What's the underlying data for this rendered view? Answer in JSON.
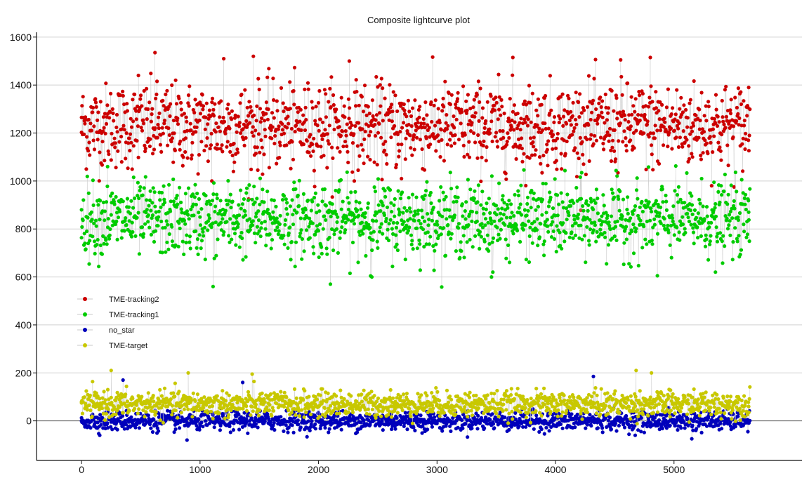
{
  "chart_data": {
    "type": "scatter",
    "title": "Composite lightcurve plot",
    "xlabel": "",
    "ylabel": "",
    "xlim": [
      -380,
      6080
    ],
    "ylim": [
      -165,
      1620
    ],
    "x_ticks": [
      0,
      1000,
      2000,
      3000,
      4000,
      5000
    ],
    "y_ticks": [
      0,
      200,
      400,
      600,
      800,
      1000,
      1200,
      1400,
      1600
    ],
    "x_tick_labels": [
      "0",
      "1000",
      "2000",
      "3000",
      "4000",
      "5000"
    ],
    "y_tick_labels": [
      "0",
      "200",
      "400",
      "600",
      "800",
      "1000",
      "1200",
      "1400",
      "1600"
    ],
    "grid": "horizontal",
    "legend_position": "center-left",
    "x_range": [
      0,
      5640
    ],
    "series": [
      {
        "name": "TME-tracking2",
        "color": "#cc0000",
        "connector_color": "#c8c8c8",
        "summary": {
          "center": 1230,
          "typical_min": 1060,
          "typical_max": 1410
        },
        "sample_points": [
          [
            0,
            1265
          ],
          [
            480,
            1440
          ],
          [
            620,
            1535
          ],
          [
            1200,
            1510
          ],
          [
            1450,
            1520
          ],
          [
            2260,
            1500
          ],
          [
            3640,
            1515
          ],
          [
            4550,
            1505
          ],
          [
            4800,
            1515
          ],
          [
            1100,
            1000
          ],
          [
            2700,
            1010
          ],
          [
            5630,
            1390
          ]
        ]
      },
      {
        "name": "TME-tracking1",
        "color": "#00cc00",
        "connector_color": "#c8c8c8",
        "summary": {
          "center": 840,
          "typical_min": 690,
          "typical_max": 990
        },
        "sample_points": [
          [
            0,
            880
          ],
          [
            220,
            1060
          ],
          [
            1110,
            560
          ],
          [
            2100,
            570
          ],
          [
            2450,
            600
          ],
          [
            3460,
            600
          ],
          [
            4860,
            605
          ],
          [
            5350,
            620
          ],
          [
            5630,
            870
          ]
        ]
      },
      {
        "name": "no_star",
        "color": "#0000bb",
        "connector_color": "#c8c8c8",
        "summary": {
          "center": 0,
          "typical_min": -40,
          "typical_max": 40
        },
        "sample_points": [
          [
            0,
            0
          ],
          [
            350,
            170
          ],
          [
            890,
            -80
          ],
          [
            1360,
            160
          ],
          [
            4320,
            185
          ],
          [
            5150,
            -75
          ],
          [
            5630,
            0
          ]
        ]
      },
      {
        "name": "TME-target",
        "color": "#c8c800",
        "connector_color": "#c8c8c8",
        "summary": {
          "center": 70,
          "typical_min": 25,
          "typical_max": 130
        },
        "sample_points": [
          [
            0,
            80
          ],
          [
            250,
            210
          ],
          [
            900,
            200
          ],
          [
            1440,
            195
          ],
          [
            4680,
            210
          ],
          [
            4810,
            200
          ],
          [
            5630,
            60
          ]
        ]
      }
    ]
  }
}
